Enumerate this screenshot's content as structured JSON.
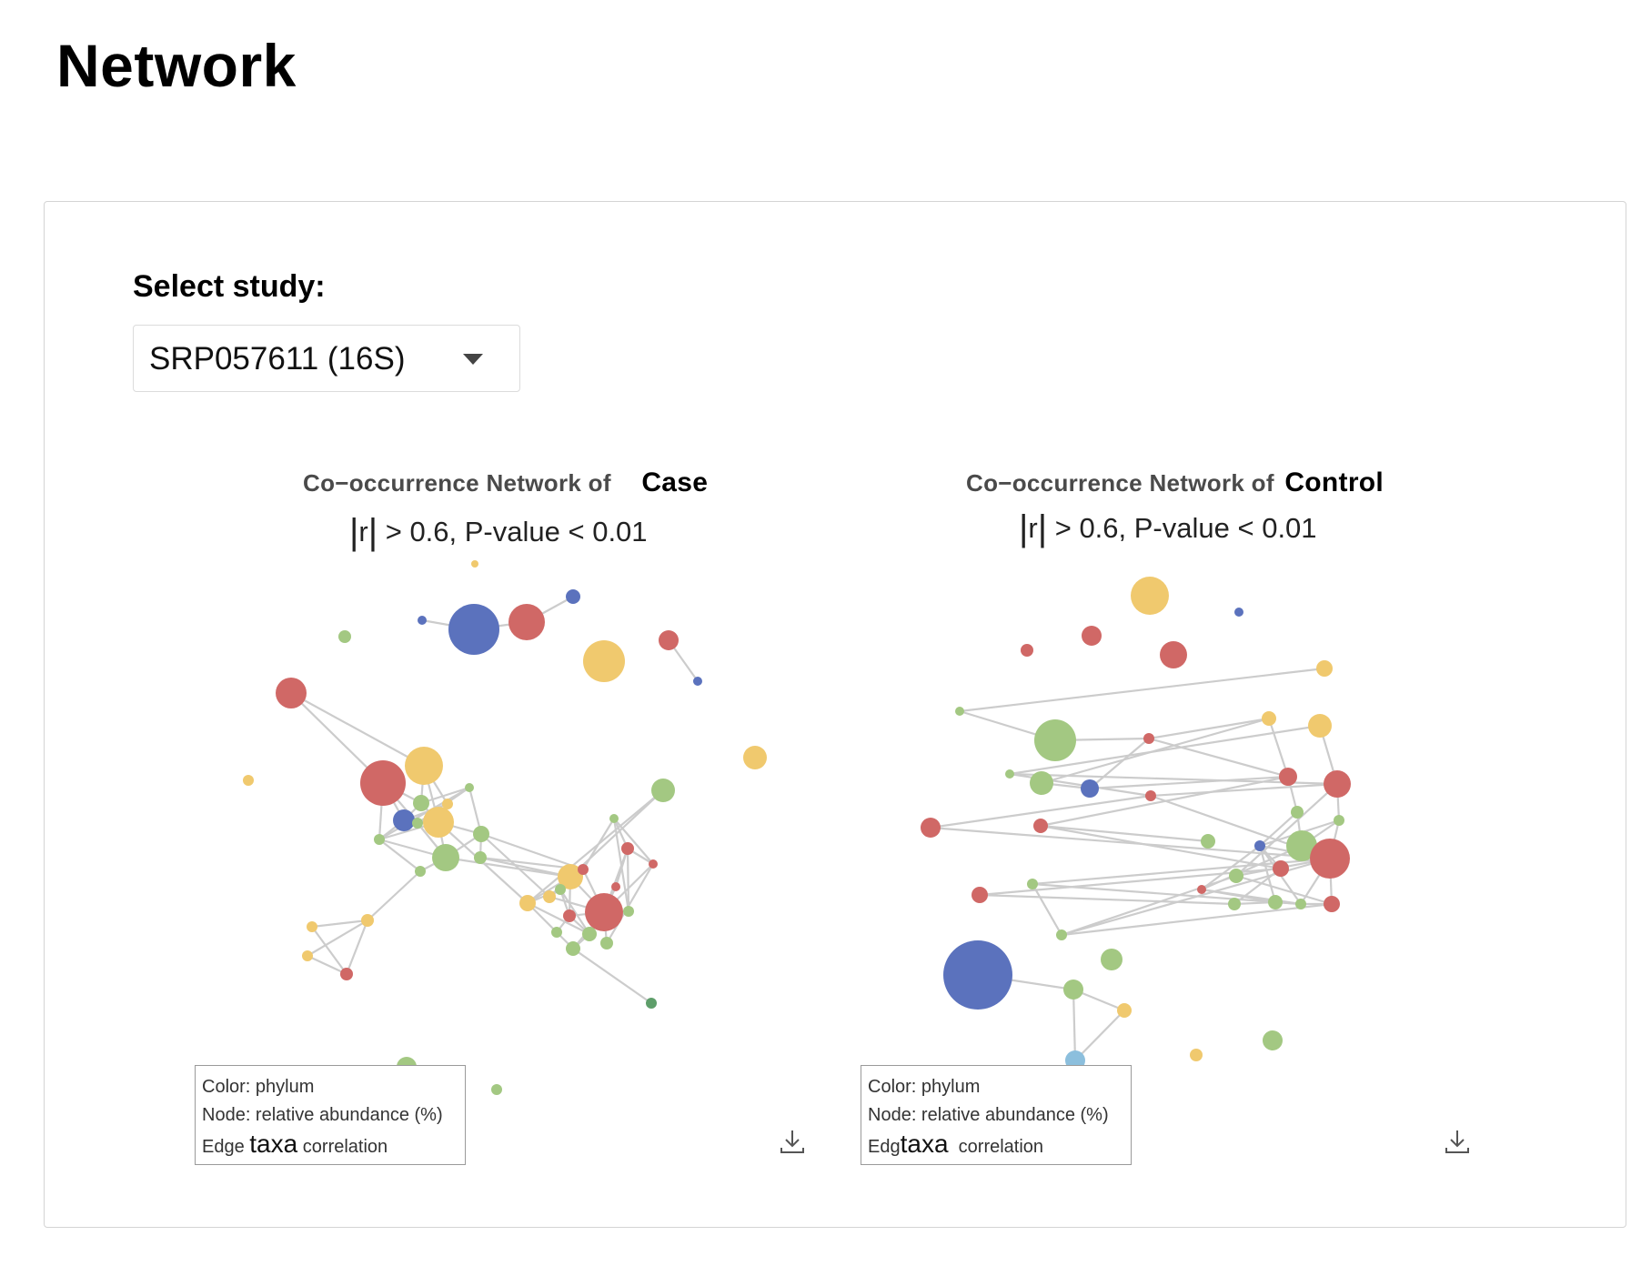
{
  "page": {
    "title": "Network"
  },
  "study_selector": {
    "label": "Select study:",
    "selected": "SRP057611 (16S)",
    "caret_icon": "caret-down-icon"
  },
  "colors": {
    "red": "#d06866",
    "yellow": "#f0c96e",
    "green": "#a3c882",
    "blue": "#5b72bd",
    "lightblue": "#8cbfdd",
    "darkgreen": "#5e9e6a",
    "edge": "#cccccc"
  },
  "networks": [
    {
      "title_prefix": "Co−occurrence Network of",
      "group": "Case",
      "subtitle_bar_open": "|",
      "subtitle_r": "r",
      "subtitle_bar_close": "|",
      "subtitle_rest": " > 0.6, P-value < 0.01",
      "legend": {
        "color_line": "Color: phylum",
        "node_line": "Node: relative abundance (%)",
        "edge_prefix": "Edge",
        "edge_taxa": "taxa",
        "edge_suffix": "correlation"
      },
      "download_icon": "download-icon"
    },
    {
      "title_prefix": "Co−occurrence Network of",
      "group": "Control",
      "subtitle_bar_open": "|",
      "subtitle_r": "r",
      "subtitle_bar_close": "|",
      "subtitle_rest": " > 0.6, P-value < 0.01",
      "legend": {
        "color_line": "Color: phylum",
        "node_line": "Node: relative abundance (%)",
        "edge_prefix": "Edg",
        "edge_taxa": "taxa",
        "edge_suffix": "correlation"
      },
      "download_icon": "download-icon"
    }
  ]
}
